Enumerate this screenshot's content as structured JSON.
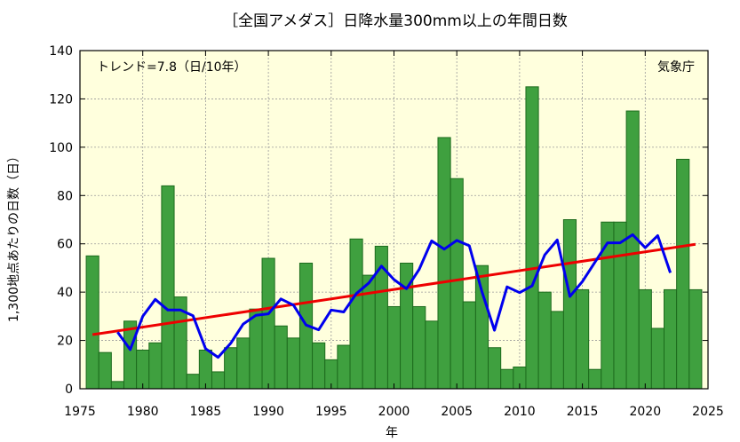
{
  "chart_data": {
    "type": "bar",
    "title": "［全国アメダス］日降水量300mm以上の年間日数",
    "xlabel": "年",
    "ylabel": "1,300地点あたりの日数（日）",
    "trend_label": "トレンド=7.8（日/10年）",
    "source_label": "気象庁",
    "xlim": [
      1975,
      2025
    ],
    "ylim": [
      0,
      140
    ],
    "x_ticks": [
      1975,
      1980,
      1985,
      1990,
      1995,
      2000,
      2005,
      2010,
      2015,
      2020,
      2025
    ],
    "y_ticks": [
      0,
      20,
      40,
      60,
      80,
      100,
      120,
      140
    ],
    "grid": true,
    "colors": {
      "plot_background": "#ffffdd",
      "bar_fill": "#3fa03f",
      "bar_edge": "#1d6b1d",
      "moving_average": "#0000ee",
      "trend": "#ee0000"
    },
    "x": [
      1976,
      1977,
      1978,
      1979,
      1980,
      1981,
      1982,
      1983,
      1984,
      1985,
      1986,
      1987,
      1988,
      1989,
      1990,
      1991,
      1992,
      1993,
      1994,
      1995,
      1996,
      1997,
      1998,
      1999,
      2000,
      2001,
      2002,
      2003,
      2004,
      2005,
      2006,
      2007,
      2008,
      2009,
      2010,
      2011,
      2012,
      2013,
      2014,
      2015,
      2016,
      2017,
      2018,
      2019,
      2020,
      2021,
      2022,
      2023,
      2024
    ],
    "series": [
      {
        "kind": "bar",
        "values": [
          55,
          15,
          3,
          28,
          16,
          19,
          84,
          38,
          6,
          16,
          7,
          17,
          21,
          33,
          54,
          26,
          21,
          52,
          19,
          12,
          18,
          62,
          47,
          59,
          34,
          52,
          34,
          28,
          104,
          87,
          36,
          51,
          17,
          8,
          9,
          125,
          40,
          32,
          70,
          41,
          8,
          69,
          69,
          115,
          41,
          25,
          41,
          95,
          41
        ]
      },
      {
        "kind": "moving_average",
        "x": [
          1978,
          1979,
          1980,
          1981,
          1982,
          1983,
          1984,
          1985,
          1986,
          1987,
          1988,
          1989,
          1990,
          1991,
          1992,
          1993,
          1994,
          1995,
          1996,
          1997,
          1998,
          1999,
          2000,
          2001,
          2002,
          2003,
          2004,
          2005,
          2006,
          2007,
          2008,
          2009,
          2010,
          2011,
          2012,
          2013,
          2014,
          2015,
          2016,
          2017,
          2018,
          2019,
          2020,
          2021,
          2022
        ],
        "values": [
          23.4,
          16.2,
          30.0,
          37.0,
          32.6,
          32.6,
          30.2,
          16.6,
          13.0,
          18.8,
          26.8,
          30.4,
          31.0,
          37.2,
          34.6,
          26.4,
          24.4,
          32.6,
          31.8,
          39.4,
          43.8,
          50.8,
          45.2,
          41.4,
          49.4,
          61.2,
          57.8,
          61.4,
          59.2,
          40.2,
          24.2,
          42.2,
          39.8,
          42.6,
          55.4,
          61.6,
          38.2,
          44.4,
          52.4,
          60.4,
          60.4,
          63.8,
          58.4,
          63.4,
          48.0
        ]
      },
      {
        "kind": "trend",
        "x": [
          1976,
          2024
        ],
        "values": [
          22.4,
          59.8
        ]
      }
    ]
  }
}
